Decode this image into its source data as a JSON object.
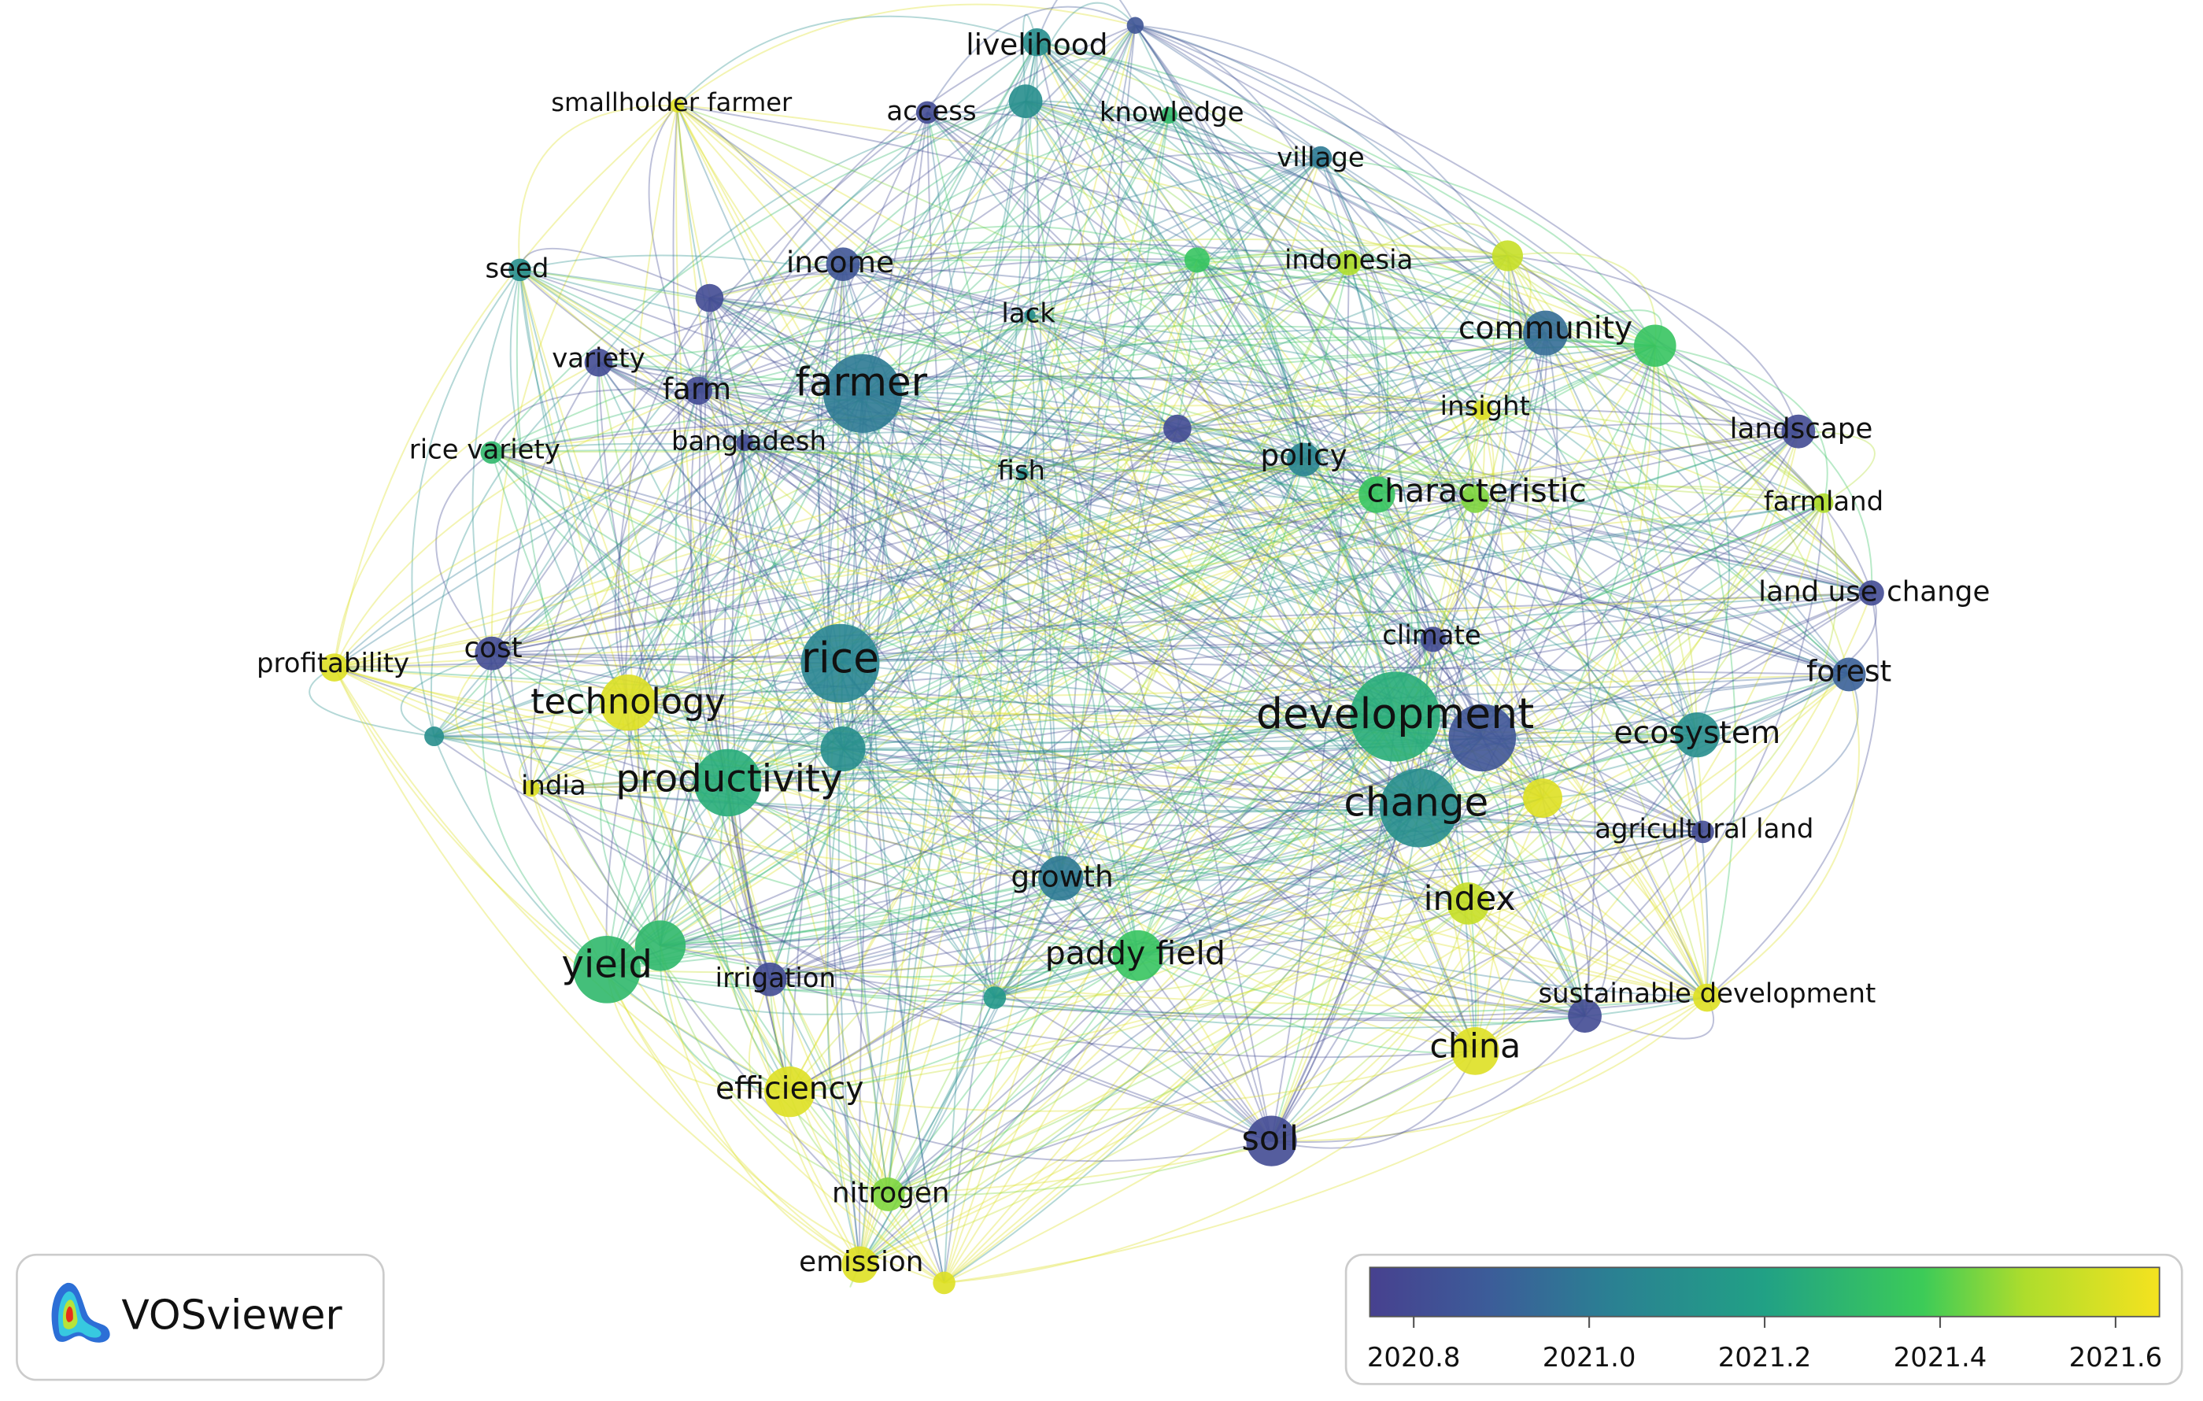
{
  "nodes": [
    {
      "label": "livelihood",
      "year": 2021.1
    },
    {
      "label": null,
      "year": 2020.85
    },
    {
      "label": "smallholder farmer",
      "year": 2021.6
    },
    {
      "label": "access",
      "year": 2020.8
    },
    {
      "label": "knowledge",
      "year": 2021.3
    },
    {
      "label": null,
      "year": 2021.1
    },
    {
      "label": "village",
      "year": 2021.0
    },
    {
      "label": "seed",
      "year": 2021.1
    },
    {
      "label": "income",
      "year": 2020.85
    },
    {
      "label": null,
      "year": 2020.8
    },
    {
      "label": null,
      "year": 2021.35
    },
    {
      "label": "indonesia",
      "year": 2021.5
    },
    {
      "label": null,
      "year": 2021.55
    },
    {
      "label": "lack",
      "year": 2021.1
    },
    {
      "label": "community",
      "year": 2020.95
    },
    {
      "label": null,
      "year": 2021.35
    },
    {
      "label": "variety",
      "year": 2020.8
    },
    {
      "label": "farm",
      "year": 2020.8
    },
    {
      "label": "farmer",
      "year": 2021.0
    },
    {
      "label": "bangladesh",
      "year": 2020.8
    },
    {
      "label": "insight",
      "year": 2021.6
    },
    {
      "label": "landscape",
      "year": 2020.8
    },
    {
      "label": null,
      "year": 2020.8
    },
    {
      "label": "rice variety",
      "year": 2021.3
    },
    {
      "label": "policy",
      "year": 2021.05
    },
    {
      "label": "fish",
      "year": 2021.1
    },
    {
      "label": null,
      "year": 2021.35
    },
    {
      "label": "characteristic",
      "year": 2021.45
    },
    {
      "label": "farmland",
      "year": 2021.5
    },
    {
      "label": "land use change",
      "year": 2020.8
    },
    {
      "label": "climate",
      "year": 2020.8
    },
    {
      "label": "profitability",
      "year": 2021.6
    },
    {
      "label": "cost",
      "year": 2020.8
    },
    {
      "label": "rice",
      "year": 2021.05
    },
    {
      "label": "forest",
      "year": 2020.9
    },
    {
      "label": "technology",
      "year": 2021.6
    },
    {
      "label": "development",
      "year": 2021.25
    },
    {
      "label": null,
      "year": 2020.85
    },
    {
      "label": "ecosystem",
      "year": 2021.1
    },
    {
      "label": null,
      "year": 2021.1
    },
    {
      "label": null,
      "year": 2021.1
    },
    {
      "label": "productivity",
      "year": 2021.25
    },
    {
      "label": "india",
      "year": 2021.6
    },
    {
      "label": "change",
      "year": 2021.1
    },
    {
      "label": null,
      "year": 2021.6
    },
    {
      "label": "agricultural land",
      "year": 2020.8
    },
    {
      "label": "growth",
      "year": 2021.0
    },
    {
      "label": "index",
      "year": 2021.55
    },
    {
      "label": "paddy field",
      "year": 2021.35
    },
    {
      "label": "yield",
      "year": 2021.3
    },
    {
      "label": null,
      "year": 2021.3
    },
    {
      "label": "irrigation",
      "year": 2020.8
    },
    {
      "label": null,
      "year": 2021.15
    },
    {
      "label": "sustainable development",
      "year": 2021.6
    },
    {
      "label": null,
      "year": 2020.8
    },
    {
      "label": "china",
      "year": 2021.6
    },
    {
      "label": "efficiency",
      "year": 2021.6
    },
    {
      "label": "soil",
      "year": 2020.8
    },
    {
      "label": "nitrogen",
      "year": 2021.45
    },
    {
      "label": "emission",
      "year": 2021.6
    },
    {
      "label": null,
      "year": 2021.6
    }
  ],
  "color_scale": {
    "range": [
      2020.75,
      2021.65
    ],
    "ticks": [
      2020.8,
      {
        "value": 2021.0,
        "label": "2021.0"
      },
      2021.2,
      2021.4,
      2021.6
    ]
  },
  "logo": {
    "text": "VOSviewer"
  }
}
